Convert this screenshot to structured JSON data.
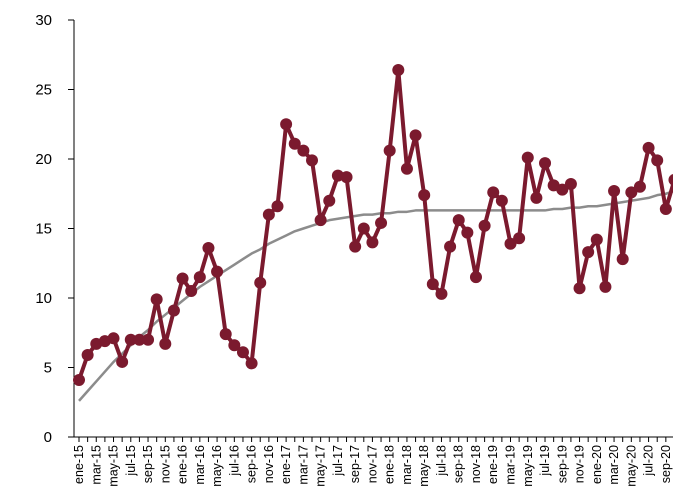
{
  "chart_data": {
    "type": "line",
    "categories": [
      "ene-15",
      null,
      "mar-15",
      null,
      "may-15",
      null,
      "jul-15",
      null,
      "sep-15",
      null,
      "nov-15",
      null,
      "ene-16",
      null,
      "mar-16",
      null,
      "may-16",
      null,
      "jul-16",
      null,
      "sep-16",
      null,
      "nov-16",
      null,
      "ene-17",
      null,
      "mar-17",
      null,
      "may-17",
      null,
      "jul-17",
      null,
      "sep-17",
      null,
      "nov-17",
      null,
      "ene-18",
      null,
      "mar-18",
      null,
      "may-18",
      null,
      "jul-18",
      null,
      "sep-18",
      null,
      "nov-18",
      null,
      "ene-19",
      null,
      "mar-19",
      null,
      "may-19",
      null,
      "jul-19",
      null,
      "sep-19",
      null,
      "nov-19",
      null,
      "ene-20",
      null,
      "mar-20",
      null,
      "may-20",
      null,
      "jul-20",
      null,
      "sep-20",
      null
    ],
    "series": [
      {
        "color": "#7b1a2e",
        "markers": true,
        "values": [
          4.1,
          5.9,
          6.7,
          6.9,
          7.1,
          5.4,
          7.0,
          7.0,
          7.0,
          9.9,
          6.7,
          9.1,
          11.4,
          10.5,
          11.5,
          13.6,
          11.9,
          7.4,
          6.6,
          6.1,
          5.3,
          11.1,
          16.0,
          16.6,
          22.5,
          21.1,
          20.6,
          19.9,
          15.6,
          17.0,
          18.8,
          18.7,
          13.7,
          15.0,
          14.0,
          15.4,
          20.6,
          26.4,
          19.3,
          21.7,
          17.4,
          11.0,
          10.3,
          13.7,
          15.6,
          14.7,
          11.5,
          15.2,
          17.6,
          17.0,
          13.9,
          14.3,
          20.1,
          17.2,
          19.7,
          18.1,
          17.8,
          18.2,
          10.7,
          13.3,
          14.2,
          10.8,
          17.7,
          12.8,
          17.6,
          18.0,
          20.8,
          19.9,
          16.4,
          18.5
        ]
      },
      {
        "color": "#8c8c8c",
        "markers": false,
        "values": [
          2.6,
          3.3,
          4.0,
          4.7,
          5.4,
          6.0,
          6.6,
          7.2,
          7.7,
          8.3,
          8.8,
          9.3,
          9.8,
          10.3,
          10.8,
          11.2,
          11.6,
          12.0,
          12.4,
          12.8,
          13.2,
          13.5,
          13.9,
          14.2,
          14.5,
          14.8,
          15.0,
          15.2,
          15.4,
          15.6,
          15.7,
          15.8,
          15.9,
          16.0,
          16.0,
          16.1,
          16.1,
          16.2,
          16.2,
          16.3,
          16.3,
          16.3,
          16.3,
          16.3,
          16.3,
          16.3,
          16.3,
          16.3,
          16.3,
          16.3,
          16.3,
          16.3,
          16.3,
          16.3,
          16.3,
          16.4,
          16.4,
          16.5,
          16.5,
          16.6,
          16.6,
          16.7,
          16.8,
          16.9,
          17.0,
          17.1,
          17.2,
          17.4,
          17.5,
          17.7
        ]
      }
    ],
    "ylim": [
      0,
      30
    ],
    "yticks": [
      0,
      5,
      10,
      15,
      20,
      25,
      30
    ],
    "grid": false
  }
}
